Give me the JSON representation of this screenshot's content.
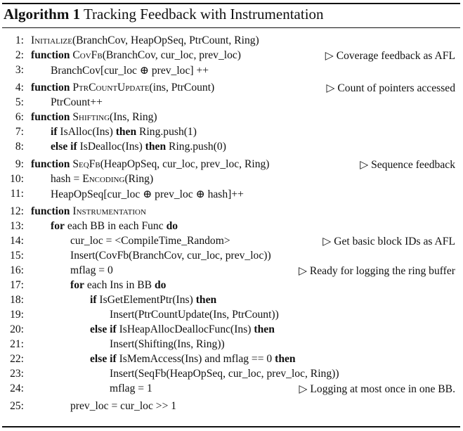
{
  "algorithm": {
    "label": "Algorithm 1",
    "title": "Tracking Feedback with Instrumentation"
  },
  "lines": [
    {
      "num": "1:",
      "indent": 0,
      "segments": [
        {
          "t": "Initialize",
          "s": "sc"
        },
        {
          "t": "(BranchCov, HeapOpSeq, PtrCount, Ring)"
        }
      ],
      "comment": ""
    },
    {
      "num": "2:",
      "indent": 0,
      "segments": [
        {
          "t": "function",
          "s": "kw"
        },
        {
          "t": " "
        },
        {
          "t": "CovFb",
          "s": "sc"
        },
        {
          "t": "(BranchCov, cur_loc, prev_loc)"
        }
      ],
      "comment": "▷ Coverage feedback as AFL"
    },
    {
      "num": "3:",
      "indent": 1,
      "segments": [
        {
          "t": "BranchCov[cur_loc ⊕ prev_loc] ++"
        }
      ],
      "comment": ""
    },
    {
      "num": "4:",
      "indent": 0,
      "segments": [
        {
          "t": "function",
          "s": "kw"
        },
        {
          "t": " "
        },
        {
          "t": "PtrCountUpdate",
          "s": "sc"
        },
        {
          "t": "(ins, PtrCount)"
        }
      ],
      "comment": "▷ Count of pointers accessed"
    },
    {
      "num": "5:",
      "indent": 1,
      "segments": [
        {
          "t": "PtrCount++"
        }
      ],
      "comment": ""
    },
    {
      "num": "6:",
      "indent": 0,
      "segments": [
        {
          "t": "function",
          "s": "kw"
        },
        {
          "t": " "
        },
        {
          "t": "Shifting",
          "s": "sc"
        },
        {
          "t": "(Ins, Ring)"
        }
      ],
      "comment": ""
    },
    {
      "num": "7:",
      "indent": 1,
      "segments": [
        {
          "t": "if",
          "s": "kw"
        },
        {
          "t": " IsAlloc(Ins) "
        },
        {
          "t": "then",
          "s": "kw"
        },
        {
          "t": " Ring.push(1)"
        }
      ],
      "comment": ""
    },
    {
      "num": "8:",
      "indent": 1,
      "segments": [
        {
          "t": "else if",
          "s": "kw"
        },
        {
          "t": " IsDealloc(Ins) "
        },
        {
          "t": "then",
          "s": "kw"
        },
        {
          "t": " Ring.push(0)"
        }
      ],
      "comment": ""
    },
    {
      "num": "9:",
      "indent": 0,
      "segments": [
        {
          "t": "function",
          "s": "kw"
        },
        {
          "t": " "
        },
        {
          "t": "SeqFb",
          "s": "sc"
        },
        {
          "t": "(HeapOpSeq, cur_loc, prev_loc, Ring)"
        }
      ],
      "comment": "▷ Sequence feedback"
    },
    {
      "num": "10:",
      "indent": 1,
      "segments": [
        {
          "t": "hash = "
        },
        {
          "t": "Encoding",
          "s": "sc"
        },
        {
          "t": "(Ring)"
        }
      ],
      "comment": ""
    },
    {
      "num": "11:",
      "indent": 1,
      "segments": [
        {
          "t": "HeapOpSeq[cur_loc ⊕ prev_loc ⊕ hash]++"
        }
      ],
      "comment": ""
    },
    {
      "num": "12:",
      "indent": 0,
      "segments": [
        {
          "t": "function",
          "s": "kw"
        },
        {
          "t": " "
        },
        {
          "t": "Instrumentation",
          "s": "sc"
        }
      ],
      "comment": ""
    },
    {
      "num": "13:",
      "indent": 1,
      "segments": [
        {
          "t": "for",
          "s": "kw"
        },
        {
          "t": " each BB in each Func "
        },
        {
          "t": "do",
          "s": "kw"
        }
      ],
      "comment": ""
    },
    {
      "num": "14:",
      "indent": 2,
      "segments": [
        {
          "t": "cur_loc = <CompileTime_Random>"
        }
      ],
      "comment": "▷ Get basic block IDs as AFL"
    },
    {
      "num": "15:",
      "indent": 2,
      "segments": [
        {
          "t": "Insert(CovFb(BranchCov, cur_loc, prev_loc))"
        }
      ],
      "comment": ""
    },
    {
      "num": "16:",
      "indent": 2,
      "segments": [
        {
          "t": "mflag = 0"
        }
      ],
      "comment": "▷ Ready for logging the ring buffer"
    },
    {
      "num": "17:",
      "indent": 2,
      "segments": [
        {
          "t": "for",
          "s": "kw"
        },
        {
          "t": " each Ins in BB "
        },
        {
          "t": "do",
          "s": "kw"
        }
      ],
      "comment": ""
    },
    {
      "num": "18:",
      "indent": 3,
      "segments": [
        {
          "t": "if",
          "s": "kw"
        },
        {
          "t": " IsGetElementPtr(Ins) "
        },
        {
          "t": "then",
          "s": "kw"
        }
      ],
      "comment": ""
    },
    {
      "num": "19:",
      "indent": 4,
      "segments": [
        {
          "t": "Insert(PtrCountUpdate(Ins, PtrCount))"
        }
      ],
      "comment": ""
    },
    {
      "num": "20:",
      "indent": 3,
      "segments": [
        {
          "t": "else if",
          "s": "kw"
        },
        {
          "t": " IsHeapAllocDeallocFunc(Ins) "
        },
        {
          "t": "then",
          "s": "kw"
        }
      ],
      "comment": ""
    },
    {
      "num": "21:",
      "indent": 4,
      "segments": [
        {
          "t": "Insert(Shifting(Ins, Ring))"
        }
      ],
      "comment": ""
    },
    {
      "num": "22:",
      "indent": 3,
      "segments": [
        {
          "t": "else if",
          "s": "kw"
        },
        {
          "t": " IsMemAccess(Ins) and mflag == 0 "
        },
        {
          "t": "then",
          "s": "kw"
        }
      ],
      "comment": ""
    },
    {
      "num": "23:",
      "indent": 4,
      "segments": [
        {
          "t": "Insert(SeqFb(HeapOpSeq, cur_loc, prev_loc, Ring))"
        }
      ],
      "comment": ""
    },
    {
      "num": "24:",
      "indent": 4,
      "segments": [
        {
          "t": "mflag = 1"
        }
      ],
      "comment": "▷ Logging at most once in one BB."
    },
    {
      "num": "25:",
      "indent": 2,
      "segments": [
        {
          "t": "prev_loc = cur_loc >> 1"
        }
      ],
      "comment": ""
    }
  ]
}
